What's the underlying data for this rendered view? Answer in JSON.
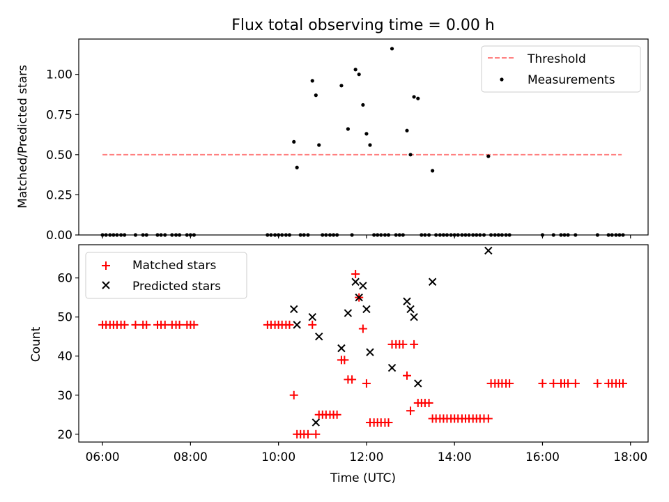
{
  "chart_data": [
    {
      "type": "scatter",
      "title": "Flux total observing time = 0.00 h",
      "xlabel": "",
      "ylabel": "Matched/Predicted stars",
      "xlim": [
        5.46,
        18.4
      ],
      "ylim": [
        0,
        1.22
      ],
      "yticks": [
        0.0,
        0.25,
        0.5,
        0.75,
        1.0
      ],
      "ytick_labels": [
        "0.00",
        "0.25",
        "0.50",
        "0.75",
        "1.00"
      ],
      "legend_position": "upper right",
      "series": [
        {
          "name": "Threshold",
          "type": "line",
          "style": "dashed",
          "color": "#ff7f7f",
          "x": [
            6.0,
            17.8
          ],
          "y": [
            0.5,
            0.5
          ]
        },
        {
          "name": "Measurements",
          "type": "scatter",
          "marker": "dot",
          "color": "#000000",
          "x": [
            10.35,
            10.42,
            10.77,
            10.85,
            10.92,
            11.43,
            11.58,
            11.75,
            11.83,
            11.92,
            12.0,
            12.08,
            12.58,
            12.92,
            13.0,
            13.08,
            13.17,
            13.5,
            14.77
          ],
          "y": [
            0.58,
            0.42,
            0.96,
            0.87,
            0.56,
            0.93,
            0.66,
            1.03,
            1.0,
            0.81,
            0.63,
            0.56,
            1.16,
            0.65,
            0.5,
            0.86,
            0.85,
            0.4,
            0.49
          ],
          "zeros_x": [
            6.0,
            6.08,
            6.17,
            6.25,
            6.33,
            6.42,
            6.5,
            6.75,
            6.92,
            7.0,
            7.25,
            7.33,
            7.42,
            7.58,
            7.67,
            7.75,
            7.92,
            8.0,
            8.08,
            9.75,
            9.83,
            9.92,
            10.0,
            10.08,
            10.17,
            10.25,
            10.5,
            10.58,
            10.67,
            11.0,
            11.08,
            11.17,
            11.25,
            11.33,
            11.67,
            12.17,
            12.25,
            12.33,
            12.42,
            12.5,
            12.67,
            12.75,
            12.83,
            13.25,
            13.33,
            13.42,
            13.58,
            13.67,
            13.75,
            13.83,
            13.92,
            14.0,
            14.08,
            14.17,
            14.25,
            14.33,
            14.42,
            14.5,
            14.58,
            14.67,
            14.83,
            14.92,
            15.0,
            15.08,
            15.17,
            15.25,
            16.0,
            16.25,
            16.42,
            16.5,
            16.58,
            16.75,
            17.25,
            17.5,
            17.58,
            17.67,
            17.75,
            17.83
          ]
        }
      ]
    },
    {
      "type": "scatter",
      "title": "",
      "xlabel": "Time (UTC)",
      "ylabel": "Count",
      "xlim": [
        5.46,
        18.4
      ],
      "ylim": [
        18,
        68.5
      ],
      "xticks": [
        6,
        8,
        10,
        12,
        14,
        16,
        18
      ],
      "xtick_labels": [
        "06:00",
        "08:00",
        "10:00",
        "12:00",
        "14:00",
        "16:00",
        "18:00"
      ],
      "yticks": [
        20,
        30,
        40,
        50,
        60
      ],
      "ytick_labels": [
        "20",
        "30",
        "40",
        "50",
        "60"
      ],
      "legend_position": "upper left",
      "series": [
        {
          "name": "Matched stars",
          "type": "scatter",
          "marker": "plus",
          "color": "#ff0000",
          "x": [
            6.0,
            6.08,
            6.17,
            6.25,
            6.33,
            6.42,
            6.5,
            6.75,
            6.92,
            7.0,
            7.25,
            7.33,
            7.42,
            7.58,
            7.67,
            7.75,
            7.92,
            8.0,
            8.08,
            9.75,
            9.83,
            9.92,
            10.0,
            10.08,
            10.17,
            10.25,
            10.35,
            10.42,
            10.5,
            10.58,
            10.67,
            10.77,
            10.85,
            10.92,
            11.0,
            11.08,
            11.17,
            11.25,
            11.33,
            11.43,
            11.5,
            11.58,
            11.67,
            11.75,
            11.83,
            11.92,
            12.0,
            12.08,
            12.17,
            12.25,
            12.33,
            12.42,
            12.5,
            12.58,
            12.67,
            12.75,
            12.83,
            12.92,
            13.0,
            13.08,
            13.17,
            13.25,
            13.33,
            13.42,
            13.5,
            13.58,
            13.67,
            13.75,
            13.83,
            13.92,
            14.0,
            14.08,
            14.17,
            14.25,
            14.33,
            14.42,
            14.5,
            14.58,
            14.67,
            14.77,
            14.83,
            14.92,
            15.0,
            15.08,
            15.17,
            15.25,
            16.0,
            16.25,
            16.42,
            16.5,
            16.58,
            16.75,
            17.25,
            17.5,
            17.58,
            17.67,
            17.75,
            17.83
          ],
          "y": [
            48,
            48,
            48,
            48,
            48,
            48,
            48,
            48,
            48,
            48,
            48,
            48,
            48,
            48,
            48,
            48,
            48,
            48,
            48,
            48,
            48,
            48,
            48,
            48,
            48,
            48,
            30,
            20,
            20,
            20,
            20,
            48,
            20,
            25,
            25,
            25,
            25,
            25,
            25,
            39,
            39,
            34,
            34,
            61,
            55,
            47,
            33,
            23,
            23,
            23,
            23,
            23,
            23,
            43,
            43,
            43,
            43,
            35,
            26,
            43,
            28,
            28,
            28,
            28,
            24,
            24,
            24,
            24,
            24,
            24,
            24,
            24,
            24,
            24,
            24,
            24,
            24,
            24,
            24,
            24,
            33,
            33,
            33,
            33,
            33,
            33,
            33,
            33,
            33,
            33,
            33,
            33,
            33,
            33,
            33,
            33,
            33,
            33
          ]
        },
        {
          "name": "Predicted stars",
          "type": "scatter",
          "marker": "x",
          "color": "#000000",
          "x": [
            10.35,
            10.42,
            10.77,
            10.85,
            10.92,
            11.43,
            11.58,
            11.75,
            11.83,
            11.92,
            12.0,
            12.08,
            12.58,
            12.92,
            13.0,
            13.08,
            13.17,
            13.5,
            14.77
          ],
          "y": [
            52,
            48,
            50,
            23,
            45,
            42,
            51,
            59,
            55,
            58,
            52,
            41,
            37,
            54,
            52,
            50,
            33,
            59,
            67
          ]
        }
      ]
    }
  ]
}
